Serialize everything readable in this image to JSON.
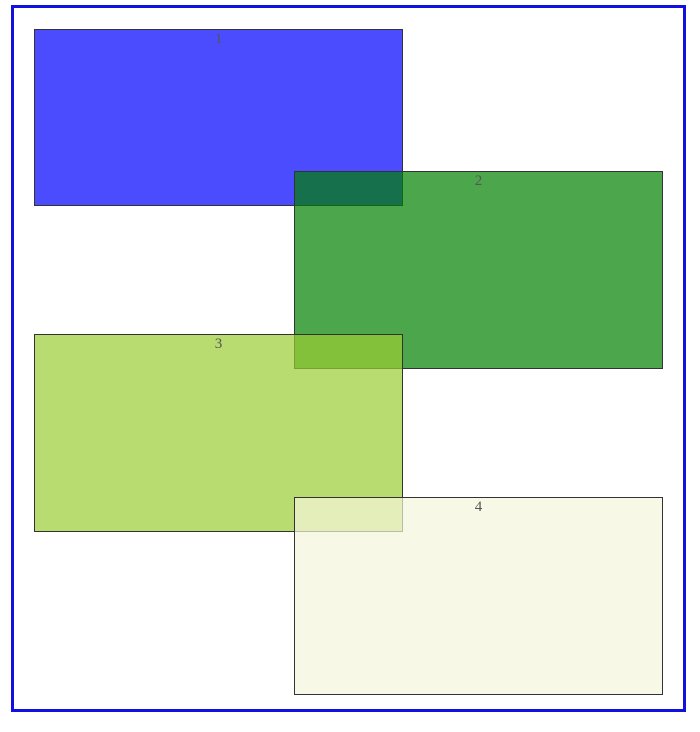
{
  "frame": {
    "border_color": "#1010e0"
  },
  "boxes": [
    {
      "label": "1",
      "color": "rgba(0, 0, 255, 0.7)"
    },
    {
      "label": "2",
      "color": "rgba(0, 128, 0, 0.7)"
    },
    {
      "label": "3",
      "color": "rgba(154, 205, 50, 0.7)"
    },
    {
      "label": "4",
      "color": "rgba(245, 245, 220, 0.7)"
    }
  ]
}
